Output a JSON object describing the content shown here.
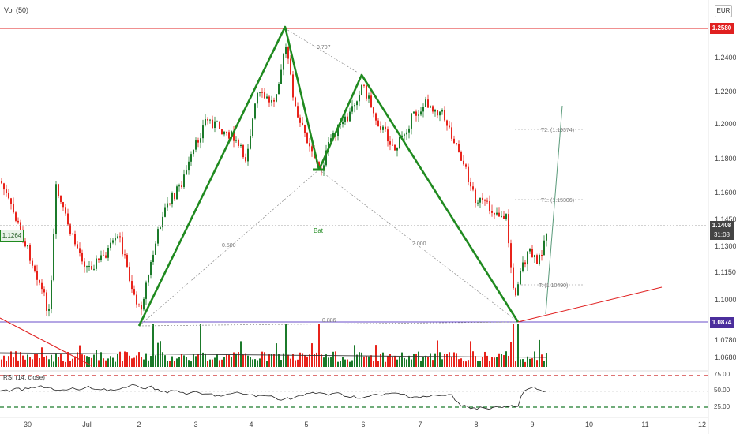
{
  "colors": {
    "up": "#1b7a2a",
    "down": "#e8231b",
    "pattern": "#1f8a1f",
    "price_line": "#e02020",
    "support_line": "#6a4cc9",
    "current_price_bg": "#444444",
    "rsi_line": "#222222",
    "rsi_band": "#cc2020",
    "rsi_mid": "#1b7a2a"
  },
  "header": {
    "volume_label": "Vol (50)",
    "currency": "EUR"
  },
  "rsi": {
    "label": "RSI (14, close)",
    "levels": [
      "75.00",
      "50.00",
      "25.00"
    ]
  },
  "markers": {
    "resistance": "1.2580",
    "current_price": "1.1408",
    "countdown": "31:08",
    "support": "1.0874",
    "left_tag": "1.1264"
  },
  "pattern": {
    "name": "Bat",
    "ratios": [
      "0.707",
      "0.500",
      "2.000",
      "0.886"
    ],
    "targets": [
      "T2: (1.19374)",
      "T1: (1.15306)",
      "T: (1.10490)"
    ]
  },
  "chart_data": {
    "type": "candlestick",
    "y_ticks": [
      "1.2400",
      "1.2200",
      "1.2000",
      "1.1800",
      "1.1600",
      "1.1450",
      "1.1300",
      "1.1150",
      "1.1000",
      "1.0780",
      "1.0680"
    ],
    "x_ticks": [
      "30",
      "Jul",
      "2",
      "3",
      "4",
      "5",
      "6",
      "7",
      "8",
      "9",
      "10",
      "11",
      "12"
    ],
    "pattern_points": {
      "X": {
        "day": 2.0,
        "price": 1.0874
      },
      "A": {
        "day": 4.6,
        "price": 1.258
      },
      "B": {
        "day": 5.2,
        "price": 1.173
      },
      "C": {
        "day": 6.0,
        "price": 1.231
      },
      "D": {
        "day": 8.75,
        "price": 1.0874
      }
    },
    "resistance": 1.258,
    "support": 1.0874,
    "last_price": 1.1408
  }
}
